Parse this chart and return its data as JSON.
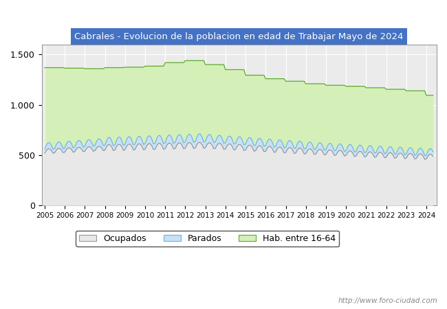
{
  "title": "Cabrales - Evolucion de la poblacion en edad de Trabajar Mayo de 2024",
  "title_bg": "#4472c4",
  "title_color": "white",
  "ylim": [
    0,
    1600
  ],
  "yticks": [
    0,
    500,
    1000,
    1500
  ],
  "ytick_labels": [
    "0",
    "500",
    "1.000",
    "1.500"
  ],
  "legend_labels": [
    "Ocupados",
    "Parados",
    "Hab. entre 16-64"
  ],
  "watermark": "http://www.foro-ciudad.com",
  "hab_color": "#d4f0b8",
  "hab_line_color": "#5aaa28",
  "par_color": "#c8e0f5",
  "par_line_color": "#6ab0e0",
  "ocu_color": "#e8e8e8",
  "ocu_line_color": "#888888",
  "bg_color": "#ebebeb"
}
